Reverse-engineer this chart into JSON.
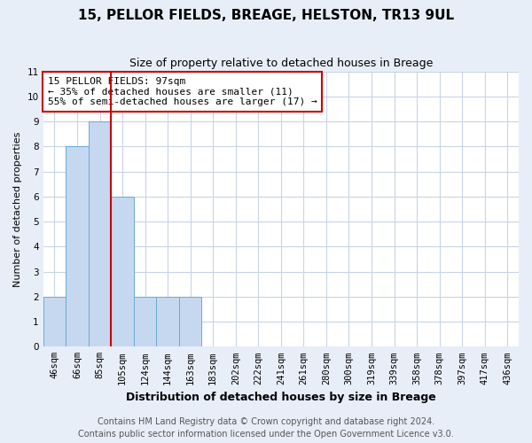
{
  "title1": "15, PELLOR FIELDS, BREAGE, HELSTON, TR13 9UL",
  "title2": "Size of property relative to detached houses in Breage",
  "xlabel": "Distribution of detached houses by size in Breage",
  "ylabel": "Number of detached properties",
  "bin_labels": [
    "46sqm",
    "66sqm",
    "85sqm",
    "105sqm",
    "124sqm",
    "144sqm",
    "163sqm",
    "183sqm",
    "202sqm",
    "222sqm",
    "241sqm",
    "261sqm",
    "280sqm",
    "300sqm",
    "319sqm",
    "339sqm",
    "358sqm",
    "378sqm",
    "397sqm",
    "417sqm",
    "436sqm"
  ],
  "bar_heights": [
    2,
    8,
    9,
    6,
    2,
    2,
    2,
    0,
    0,
    0,
    0,
    0,
    0,
    0,
    0,
    0,
    0,
    0,
    0,
    0,
    0
  ],
  "bar_color": "#c5d8f0",
  "bar_edge_color": "#6aaad4",
  "vline_x": 2.5,
  "vline_color": "#cc0000",
  "annotation_text": "15 PELLOR FIELDS: 97sqm\n← 35% of detached houses are smaller (11)\n55% of semi-detached houses are larger (17) →",
  "annotation_box_color": "#ffffff",
  "annotation_box_edge_color": "#cc0000",
  "ylim": [
    0,
    11
  ],
  "yticks": [
    0,
    1,
    2,
    3,
    4,
    5,
    6,
    7,
    8,
    9,
    10,
    11
  ],
  "footer1": "Contains HM Land Registry data © Crown copyright and database right 2024.",
  "footer2": "Contains public sector information licensed under the Open Government Licence v3.0.",
  "fig_background_color": "#e8eef8",
  "plot_background_color": "#ffffff",
  "grid_color": "#c8d4e8",
  "title1_fontsize": 11,
  "title2_fontsize": 9,
  "xlabel_fontsize": 9,
  "ylabel_fontsize": 8,
  "tick_fontsize": 7.5,
  "footer_fontsize": 7,
  "annotation_fontsize": 8
}
